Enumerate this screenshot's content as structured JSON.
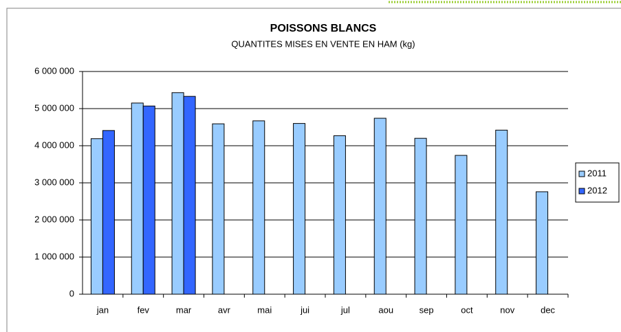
{
  "chart_data": {
    "type": "bar",
    "title": "POISSONS BLANCS",
    "subtitle": "QUANTITES MISES EN VENTE EN HAM (kg)",
    "categories": [
      "jan",
      "fev",
      "mar",
      "avr",
      "mai",
      "jui",
      "jul",
      "aou",
      "sep",
      "oct",
      "nov",
      "dec"
    ],
    "series": [
      {
        "name": "2011",
        "color": "#99ccff",
        "values": [
          4190000,
          5150000,
          5430000,
          4590000,
          4670000,
          4600000,
          4270000,
          4740000,
          4200000,
          3740000,
          4420000,
          2760000
        ]
      },
      {
        "name": "2012",
        "color": "#3366ff",
        "values": [
          4410000,
          5070000,
          5330000,
          null,
          null,
          null,
          null,
          null,
          null,
          null,
          null,
          null
        ]
      }
    ],
    "ylim": [
      0,
      6000000
    ],
    "yticks": [
      0,
      {
        "value": 1000000,
        "label": "1 000 000"
      },
      {
        "value": 2000000,
        "label": "2 000 000"
      },
      {
        "value": 3000000,
        "label": "3 000 000"
      },
      {
        "value": 4000000,
        "label": "4 000 000"
      },
      {
        "value": 5000000,
        "label": "5 000 000"
      },
      {
        "value": 6000000,
        "label": "6 000 000"
      }
    ],
    "grid": true,
    "legend": "right"
  }
}
